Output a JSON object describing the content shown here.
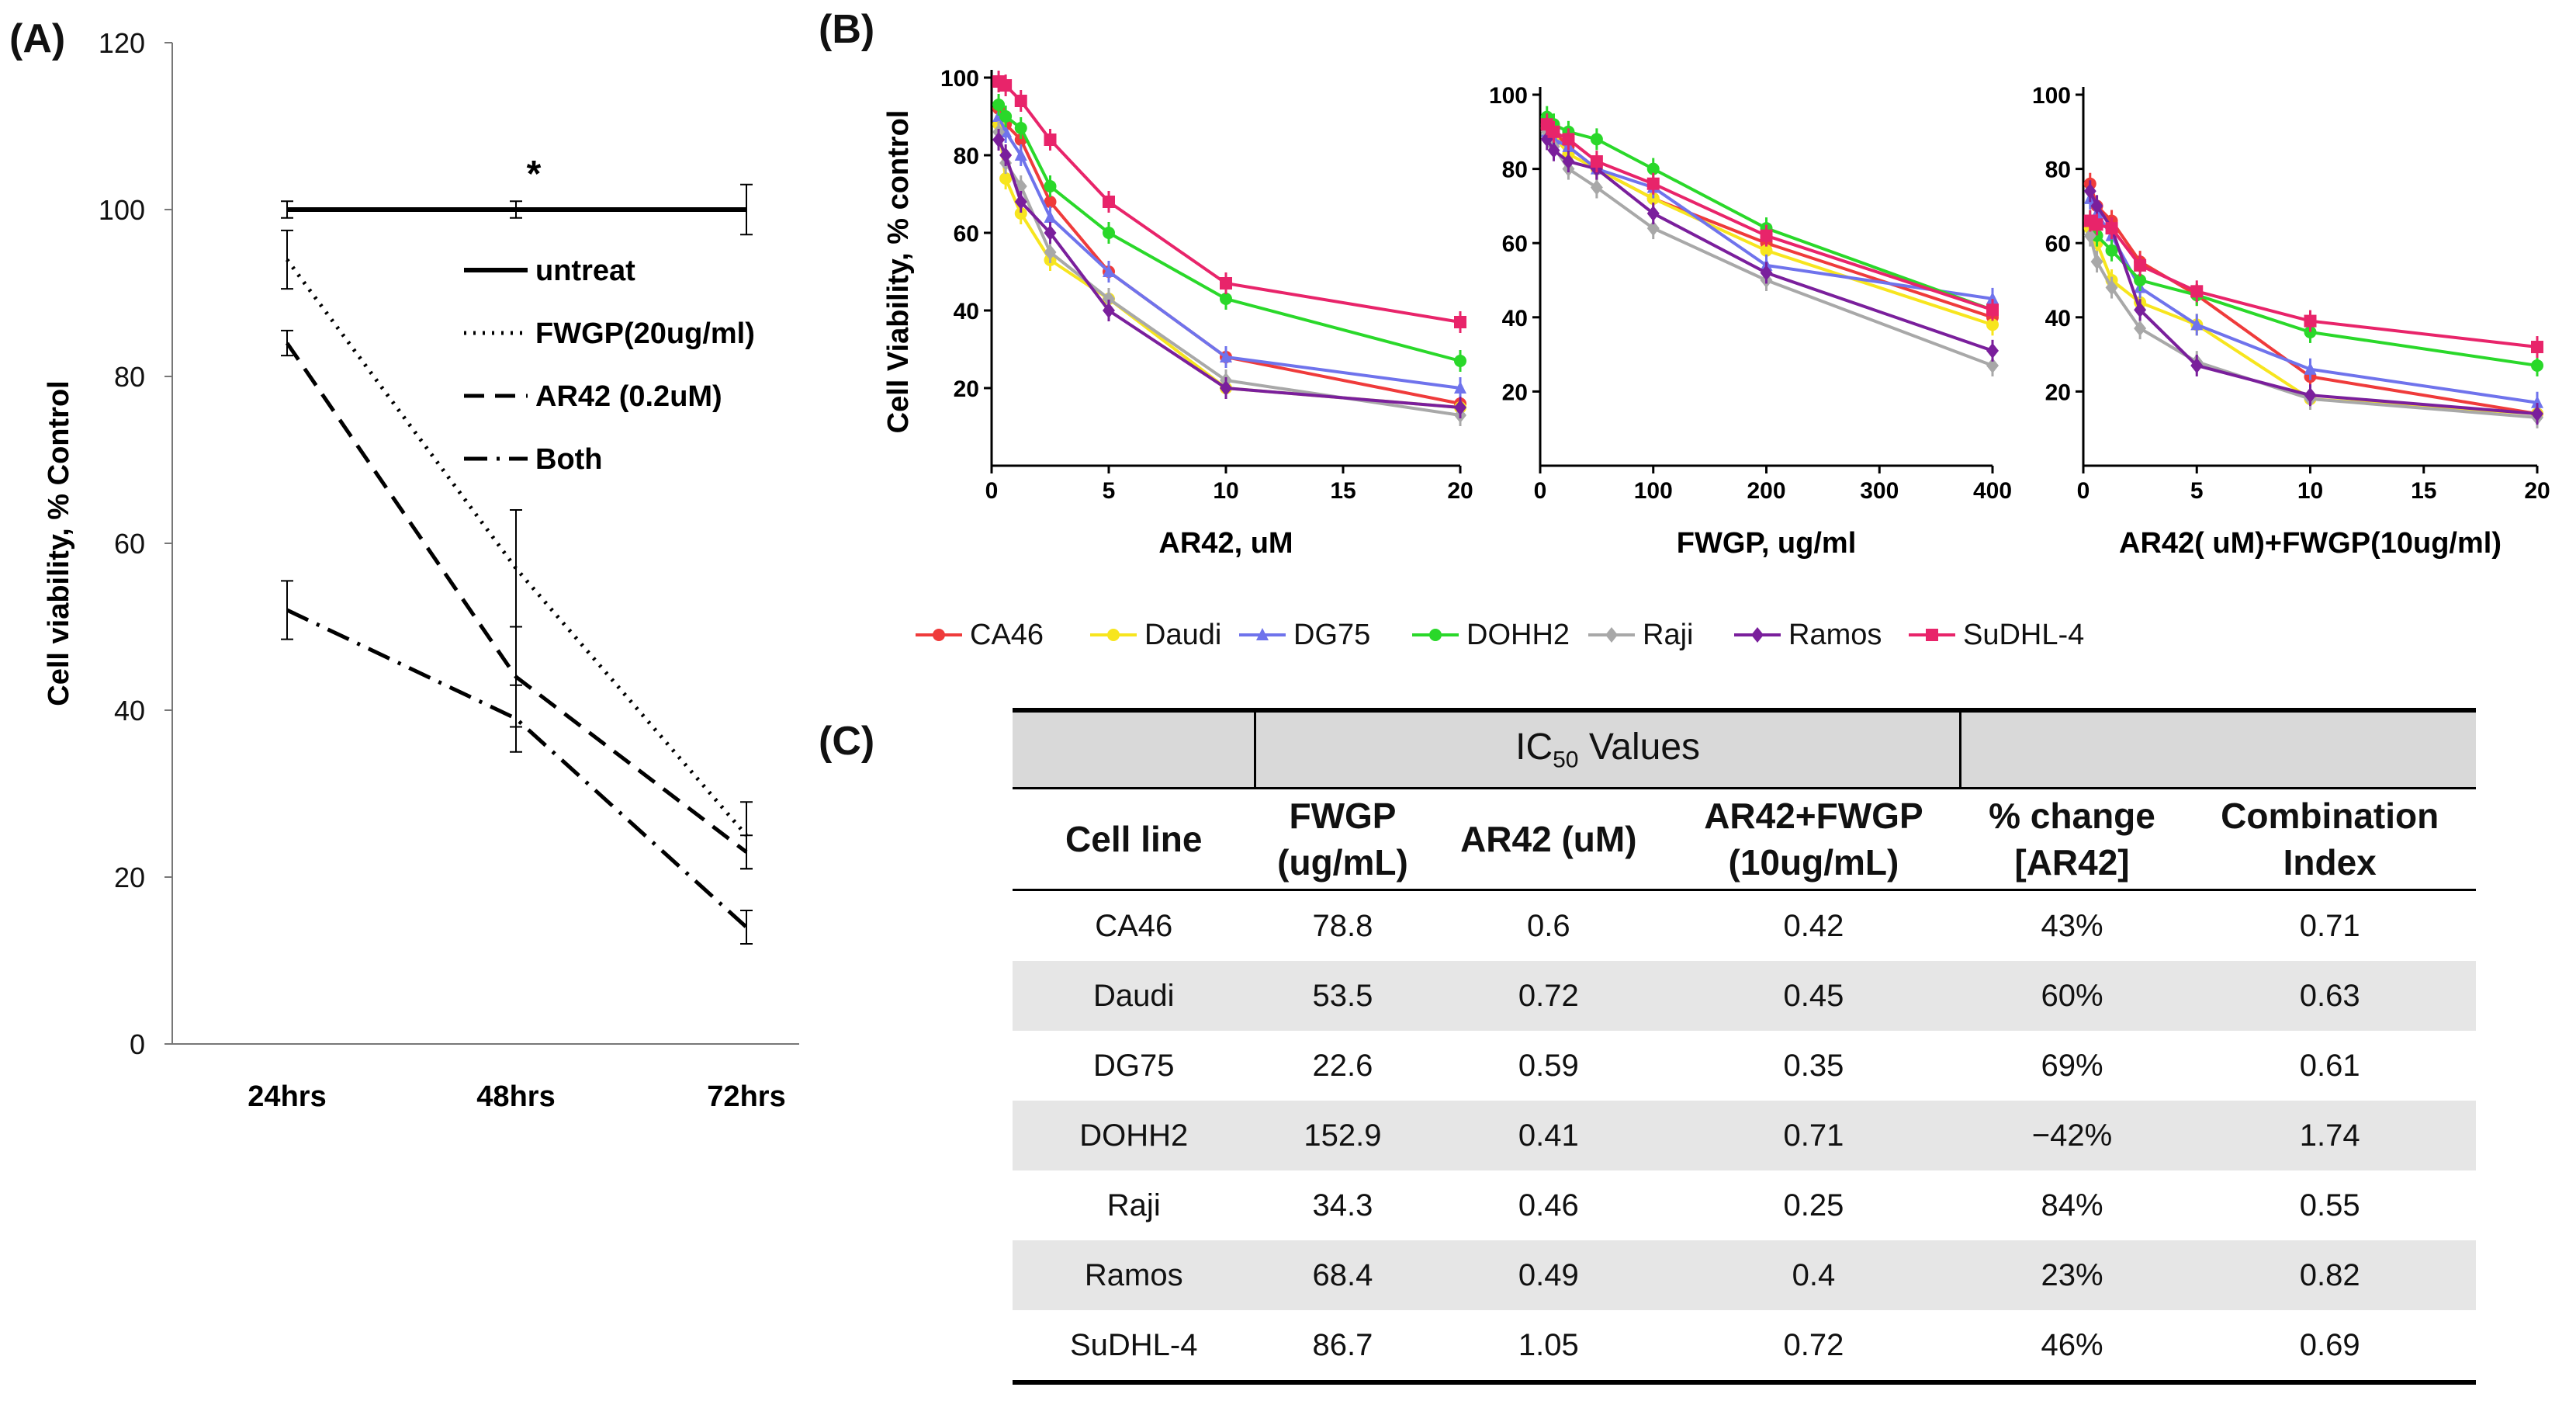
{
  "panels": {
    "a": "(A)",
    "b": "(B)",
    "c": "(C)"
  },
  "chart_data": [
    {
      "id": "A",
      "type": "line",
      "ylabel": "Cell viability,  % Control",
      "ylim": [
        0,
        120
      ],
      "yticks": [
        0,
        20,
        40,
        60,
        80,
        100,
        120
      ],
      "categories": [
        "24hrs",
        "48hrs",
        "72hrs"
      ],
      "annotation": "*",
      "series": [
        {
          "name": "untreat",
          "style": "solid",
          "values": [
            100,
            100,
            100
          ],
          "errors": [
            1,
            1,
            3
          ]
        },
        {
          "name": "FWGP(20ug/ml)",
          "style": "dotted",
          "values": [
            94,
            57,
            25
          ],
          "errors": [
            3.5,
            7,
            4
          ]
        },
        {
          "name": "AR42 (0.2uM)",
          "style": "dashed",
          "values": [
            84,
            44,
            23
          ],
          "errors": [
            1.5,
            6,
            2
          ]
        },
        {
          "name": "Both",
          "style": "dashdot",
          "values": [
            52,
            39,
            14
          ],
          "errors": [
            3.5,
            4,
            2
          ]
        }
      ]
    },
    {
      "id": "B1",
      "type": "line",
      "ylabel": "Cell Viability, % control",
      "xlabel": "AR42,  uM",
      "xlim": [
        0,
        20
      ],
      "ylim": [
        0,
        100
      ],
      "xticks": [
        0,
        5,
        10,
        15,
        20
      ],
      "yticks": [
        20,
        40,
        60,
        80,
        100
      ],
      "x": [
        0.3,
        0.6,
        1.25,
        2.5,
        5,
        10,
        20
      ],
      "series": [
        {
          "name": "CA46",
          "values": [
            92,
            88,
            84,
            68,
            50,
            28,
            16
          ]
        },
        {
          "name": "Daudi",
          "values": [
            88,
            74,
            65,
            53,
            43,
            20,
            15
          ]
        },
        {
          "name": "DG75",
          "values": [
            90,
            86,
            80,
            64,
            50,
            28,
            20
          ]
        },
        {
          "name": "DOHH2",
          "values": [
            93,
            90,
            87,
            72,
            60,
            43,
            27
          ]
        },
        {
          "name": "Raji",
          "values": [
            86,
            78,
            72,
            55,
            43,
            22,
            13
          ]
        },
        {
          "name": "Ramos",
          "values": [
            84,
            80,
            68,
            60,
            40,
            20,
            15
          ]
        },
        {
          "name": "SuDHL-4",
          "values": [
            99,
            98,
            94,
            84,
            68,
            47,
            37
          ]
        }
      ]
    },
    {
      "id": "B2",
      "type": "line",
      "xlabel": "FWGP,  ug/ml",
      "xlim": [
        0,
        400
      ],
      "ylim": [
        0,
        100
      ],
      "xticks": [
        0,
        100,
        200,
        300,
        400
      ],
      "yticks": [
        20,
        40,
        60,
        80,
        100
      ],
      "x": [
        6,
        12,
        25,
        50,
        100,
        200,
        400
      ],
      "series": [
        {
          "name": "CA46",
          "values": [
            92,
            90,
            86,
            80,
            72,
            60,
            40
          ]
        },
        {
          "name": "Daudi",
          "values": [
            91,
            89,
            84,
            80,
            72,
            58,
            38
          ]
        },
        {
          "name": "DG75",
          "values": [
            90,
            88,
            86,
            80,
            75,
            54,
            45
          ]
        },
        {
          "name": "DOHH2",
          "values": [
            94,
            92,
            90,
            88,
            80,
            64,
            42
          ]
        },
        {
          "name": "Raji",
          "values": [
            90,
            86,
            80,
            75,
            64,
            50,
            27
          ]
        },
        {
          "name": "Ramos",
          "values": [
            88,
            85,
            82,
            80,
            68,
            52,
            31
          ]
        },
        {
          "name": "SuDHL-4",
          "values": [
            92,
            90,
            88,
            82,
            76,
            62,
            42
          ]
        }
      ]
    },
    {
      "id": "B3",
      "type": "line",
      "xlabel": "AR42( uM)+FWGP(10ug/ml)",
      "xlim": [
        0,
        20
      ],
      "ylim": [
        0,
        100
      ],
      "xticks": [
        0,
        5,
        10,
        15,
        20
      ],
      "yticks": [
        20,
        40,
        60,
        80,
        100
      ],
      "x": [
        0.3,
        0.6,
        1.25,
        2.5,
        5,
        10,
        20
      ],
      "series": [
        {
          "name": "CA46",
          "values": [
            76,
            70,
            66,
            55,
            46,
            24,
            14
          ]
        },
        {
          "name": "Daudi",
          "values": [
            64,
            60,
            50,
            44,
            38,
            18,
            14
          ]
        },
        {
          "name": "DG75",
          "values": [
            72,
            68,
            62,
            48,
            38,
            26,
            17
          ]
        },
        {
          "name": "DOHH2",
          "values": [
            66,
            62,
            58,
            50,
            46,
            36,
            27
          ]
        },
        {
          "name": "Raji",
          "values": [
            62,
            55,
            48,
            37,
            28,
            18,
            13
          ]
        },
        {
          "name": "Ramos",
          "values": [
            74,
            70,
            64,
            42,
            27,
            19,
            14
          ]
        },
        {
          "name": "SuDHL-4",
          "values": [
            66,
            65,
            64,
            54,
            47,
            39,
            32
          ]
        }
      ]
    }
  ],
  "legend": [
    {
      "name": "CA46",
      "color": "#ef3b3b",
      "marker": "circle"
    },
    {
      "name": "Daudi",
      "color": "#f7e51e",
      "marker": "circle"
    },
    {
      "name": "DG75",
      "color": "#6f73ec",
      "marker": "triangle"
    },
    {
      "name": "DOHH2",
      "color": "#2ad82a",
      "marker": "circle"
    },
    {
      "name": "Raji",
      "color": "#a8a8a8",
      "marker": "diamond"
    },
    {
      "name": "Ramos",
      "color": "#7a1f9c",
      "marker": "diamond"
    },
    {
      "name": "SuDHL-4",
      "color": "#e8246a",
      "marker": "square"
    }
  ],
  "table": {
    "band_title_prefix": "IC",
    "band_title_sub": "50",
    "band_title_suffix": " Values",
    "headers": [
      [
        "Cell line"
      ],
      [
        "FWGP",
        "(ug/mL)"
      ],
      [
        "AR42 (uM)"
      ],
      [
        "AR42+FWGP",
        "(10ug/mL)"
      ],
      [
        "% change",
        "[AR42]"
      ],
      [
        "Combination",
        "Index"
      ]
    ],
    "rows": [
      [
        "CA46",
        "78.8",
        "0.6",
        "0.42",
        "43%",
        "0.71"
      ],
      [
        "Daudi",
        "53.5",
        "0.72",
        "0.45",
        "60%",
        "0.63"
      ],
      [
        "DG75",
        "22.6",
        "0.59",
        "0.35",
        "69%",
        "0.61"
      ],
      [
        "DOHH2",
        "152.9",
        "0.41",
        "0.71",
        "−42%",
        "1.74"
      ],
      [
        "Raji",
        "34.3",
        "0.46",
        "0.25",
        "84%",
        "0.55"
      ],
      [
        "Ramos",
        "68.4",
        "0.49",
        "0.4",
        "23%",
        "0.82"
      ],
      [
        "SuDHL-4",
        "86.7",
        "1.05",
        "0.72",
        "46%",
        "0.69"
      ]
    ]
  }
}
